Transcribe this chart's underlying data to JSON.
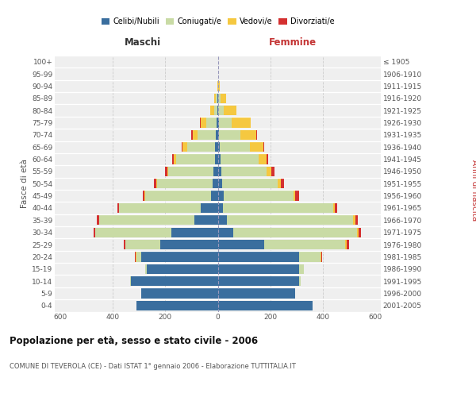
{
  "age_groups": [
    "0-4",
    "5-9",
    "10-14",
    "15-19",
    "20-24",
    "25-29",
    "30-34",
    "35-39",
    "40-44",
    "45-49",
    "50-54",
    "55-59",
    "60-64",
    "65-69",
    "70-74",
    "75-79",
    "80-84",
    "85-89",
    "90-94",
    "95-99",
    "100+"
  ],
  "birth_years": [
    "2001-2005",
    "1996-2000",
    "1991-1995",
    "1986-1990",
    "1981-1985",
    "1976-1980",
    "1971-1975",
    "1966-1970",
    "1961-1965",
    "1956-1960",
    "1951-1955",
    "1946-1950",
    "1941-1945",
    "1936-1940",
    "1931-1935",
    "1926-1930",
    "1921-1925",
    "1916-1920",
    "1911-1915",
    "1906-1910",
    "≤ 1905"
  ],
  "male": {
    "celibi": [
      310,
      290,
      330,
      270,
      290,
      220,
      175,
      90,
      65,
      25,
      20,
      18,
      12,
      10,
      8,
      4,
      2,
      2,
      0,
      0,
      0
    ],
    "coniugati": [
      0,
      0,
      2,
      5,
      20,
      130,
      290,
      360,
      310,
      250,
      210,
      170,
      145,
      105,
      70,
      40,
      12,
      5,
      0,
      0,
      0
    ],
    "vedovi": [
      0,
      0,
      0,
      0,
      2,
      2,
      2,
      2,
      2,
      3,
      4,
      5,
      10,
      18,
      18,
      20,
      15,
      8,
      2,
      0,
      0
    ],
    "divorziati": [
      0,
      0,
      0,
      0,
      2,
      5,
      5,
      8,
      5,
      8,
      10,
      8,
      5,
      5,
      5,
      4,
      0,
      0,
      0,
      0,
      0
    ]
  },
  "female": {
    "nubili": [
      360,
      295,
      310,
      310,
      310,
      175,
      60,
      35,
      20,
      22,
      18,
      15,
      10,
      8,
      5,
      4,
      2,
      2,
      0,
      0,
      0
    ],
    "coniugate": [
      0,
      0,
      5,
      18,
      80,
      310,
      470,
      480,
      420,
      265,
      210,
      170,
      145,
      115,
      80,
      50,
      20,
      8,
      2,
      0,
      0
    ],
    "vedove": [
      0,
      0,
      0,
      0,
      5,
      5,
      5,
      8,
      5,
      8,
      12,
      20,
      30,
      50,
      60,
      70,
      50,
      22,
      5,
      2,
      0
    ],
    "divorziate": [
      0,
      0,
      0,
      0,
      2,
      8,
      10,
      10,
      10,
      15,
      12,
      10,
      8,
      5,
      5,
      2,
      0,
      0,
      0,
      0,
      0
    ]
  },
  "colors": {
    "celibi": "#3a6e9e",
    "coniugati": "#c9dba5",
    "vedovi": "#f5c840",
    "divorziati": "#d43030"
  },
  "legend_labels": [
    "Celibi/Nubili",
    "Coniugati/e",
    "Vedovi/e",
    "Divorziati/e"
  ],
  "title": "Popolazione per età, sesso e stato civile - 2006",
  "subtitle": "COMUNE DI TEVEROLA (CE) - Dati ISTAT 1° gennaio 2006 - Elaborazione TUTTITALIA.IT",
  "xlabel_left": "Maschi",
  "xlabel_right": "Femmine",
  "ylabel_left": "Fasce di età",
  "ylabel_right": "Anni di nascita",
  "xlim": 620,
  "bg_color": "#ffffff",
  "plot_bg": "#efefef"
}
